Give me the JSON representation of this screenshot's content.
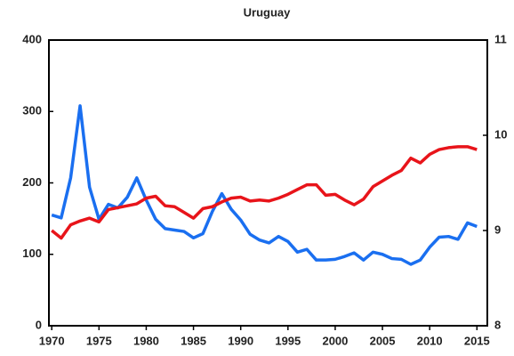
{
  "chart_data": {
    "type": "line",
    "title": "Uruguay",
    "x": [
      1970,
      1971,
      1972,
      1973,
      1974,
      1975,
      1976,
      1977,
      1978,
      1979,
      1980,
      1981,
      1982,
      1983,
      1984,
      1985,
      1986,
      1987,
      1988,
      1989,
      1990,
      1991,
      1992,
      1993,
      1994,
      1995,
      1996,
      1997,
      1998,
      1999,
      2000,
      2001,
      2002,
      2003,
      2004,
      2005,
      2006,
      2007,
      2008,
      2009,
      2010,
      2011,
      2012,
      2013,
      2014,
      2015
    ],
    "series": [
      {
        "color": "#1a6ff0",
        "values": [
          155,
          151,
          207,
          308,
          194,
          149,
          170,
          165,
          180,
          207,
          176,
          149,
          136,
          134,
          132,
          123,
          129,
          160,
          185,
          163,
          148,
          128,
          120,
          116,
          125,
          118,
          103,
          107,
          92,
          92,
          93,
          97,
          102,
          92,
          103,
          100,
          94,
          93,
          86,
          92,
          110,
          124,
          125,
          121,
          144,
          139
        ]
      },
      {
        "color": "#e8141a",
        "axis": "y2",
        "values": [
          9.0,
          8.92,
          9.06,
          9.1,
          9.13,
          9.09,
          9.22,
          9.24,
          9.26,
          9.28,
          9.34,
          9.36,
          9.26,
          9.25,
          9.19,
          9.13,
          9.23,
          9.25,
          9.3,
          9.34,
          9.35,
          9.31,
          9.32,
          9.31,
          9.34,
          9.38,
          9.43,
          9.48,
          9.48,
          9.37,
          9.38,
          9.32,
          9.27,
          9.33,
          9.46,
          9.52,
          9.58,
          9.63,
          9.76,
          9.71,
          9.8,
          9.85,
          9.87,
          9.88,
          9.88,
          9.85
        ]
      }
    ],
    "xlim": [
      1969.7,
      2016.1
    ],
    "xticks": [
      1970,
      1975,
      1980,
      1985,
      1990,
      1995,
      2000,
      2005,
      2010,
      2015
    ],
    "ylim": [
      0,
      400
    ],
    "yticks": [
      0,
      100,
      200,
      300,
      400
    ],
    "y2lim": [
      8,
      11
    ],
    "y2ticks": [
      8,
      9,
      10,
      11
    ]
  }
}
